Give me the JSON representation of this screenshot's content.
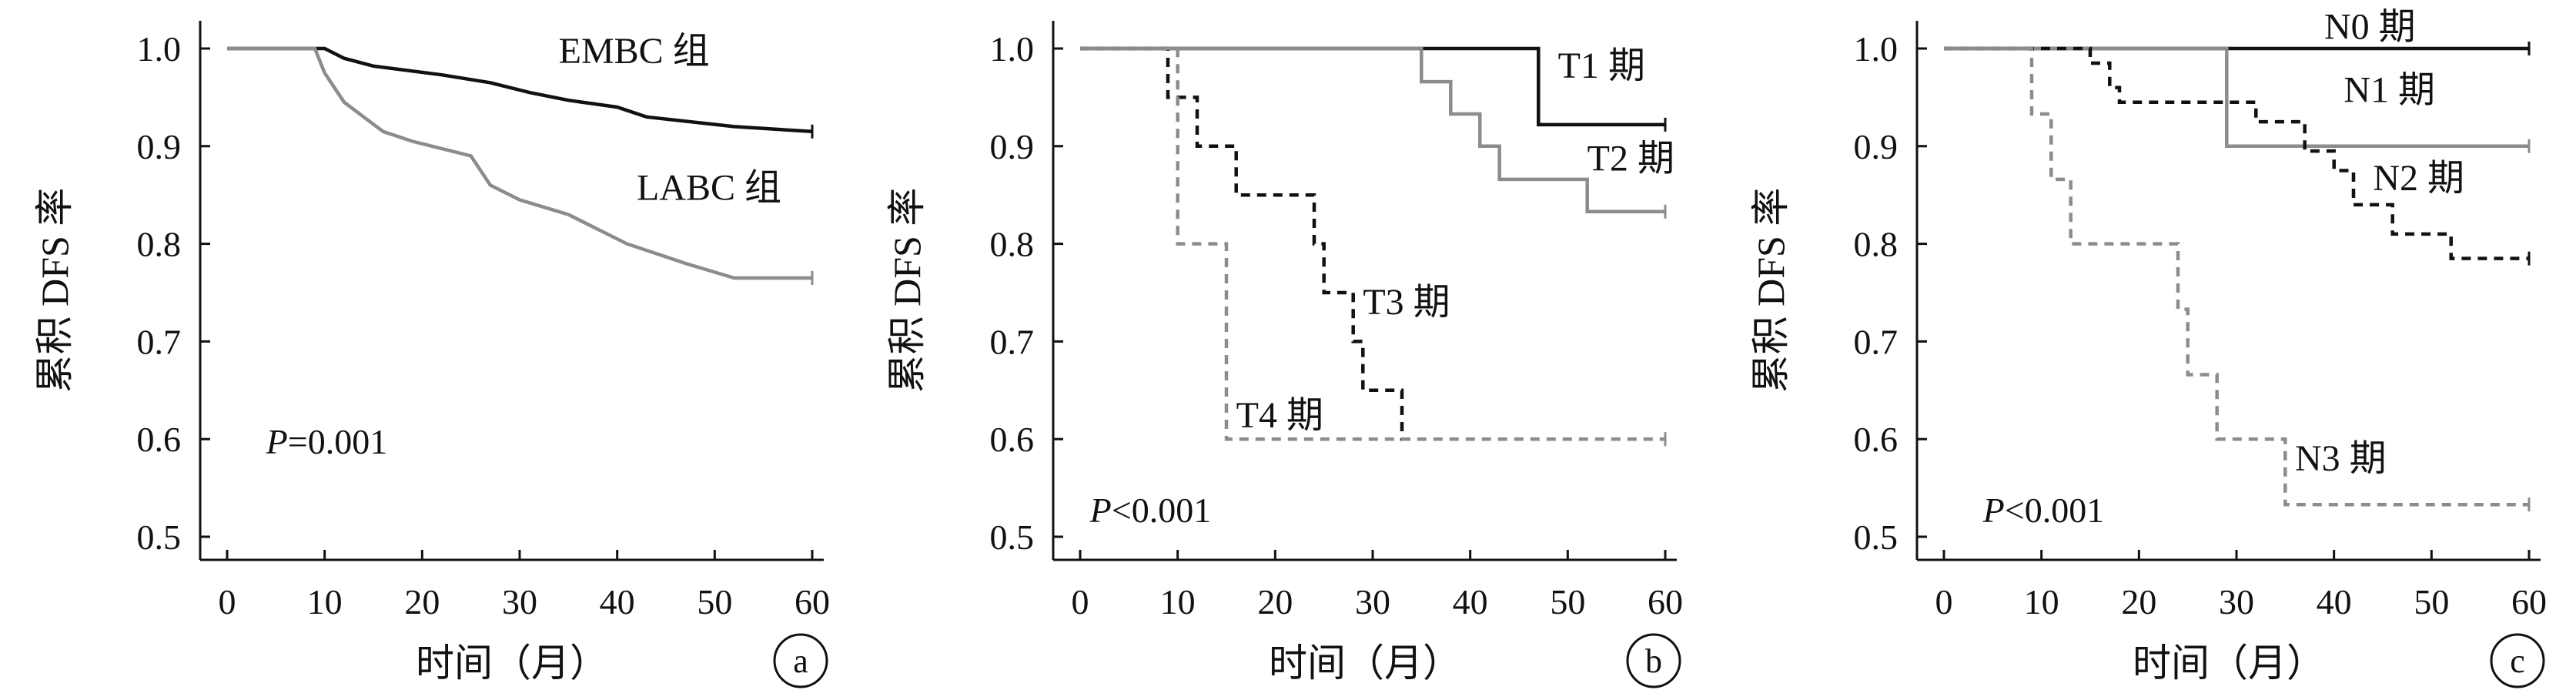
{
  "chart_data": [
    {
      "type": "line",
      "subtype": "kaplan-meier",
      "panel_label": "a",
      "ylabel": "累积 DFS 率",
      "xlabel": "时间（月）",
      "xlim": [
        0,
        60
      ],
      "ylim": [
        0.5,
        1.0
      ],
      "x_ticks": [
        0,
        10,
        20,
        30,
        40,
        50,
        60
      ],
      "y_ticks": [
        0.5,
        0.6,
        0.7,
        0.8,
        0.9,
        1.0
      ],
      "p_value_prefix": "P",
      "p_value_rest": "=0.001",
      "series": [
        {
          "name": "EMBC 组",
          "color": "#111111",
          "dash": "solid",
          "points": [
            [
              0,
              1.0
            ],
            [
              10,
              1.0
            ],
            [
              12,
              0.99
            ],
            [
              15,
              0.982
            ],
            [
              22,
              0.973
            ],
            [
              27,
              0.965
            ],
            [
              31,
              0.955
            ],
            [
              35,
              0.947
            ],
            [
              40,
              0.94
            ],
            [
              43,
              0.93
            ],
            [
              52,
              0.92
            ],
            [
              60,
              0.915
            ]
          ]
        },
        {
          "name": "LABC 组",
          "color": "#8c8c8c",
          "dash": "solid",
          "points": [
            [
              0,
              1.0
            ],
            [
              9,
              1.0
            ],
            [
              10,
              0.975
            ],
            [
              11,
              0.96
            ],
            [
              12,
              0.945
            ],
            [
              14,
              0.93
            ],
            [
              16,
              0.915
            ],
            [
              19,
              0.905
            ],
            [
              25,
              0.89
            ],
            [
              26,
              0.875
            ],
            [
              27,
              0.86
            ],
            [
              30,
              0.845
            ],
            [
              35,
              0.83
            ],
            [
              38,
              0.815
            ],
            [
              41,
              0.8
            ],
            [
              44,
              0.79
            ],
            [
              47,
              0.78
            ],
            [
              52,
              0.765
            ],
            [
              60,
              0.765
            ]
          ]
        }
      ]
    },
    {
      "type": "line",
      "subtype": "kaplan-meier",
      "panel_label": "b",
      "ylabel": "累积 DFS 率",
      "xlabel": "时间（月）",
      "xlim": [
        0,
        60
      ],
      "ylim": [
        0.5,
        1.0
      ],
      "x_ticks": [
        0,
        10,
        20,
        30,
        40,
        50,
        60
      ],
      "y_ticks": [
        0.5,
        0.6,
        0.7,
        0.8,
        0.9,
        1.0
      ],
      "p_value_prefix": "P",
      "p_value_rest": "<0.001",
      "series": [
        {
          "name": "T1 期",
          "color": "#111111",
          "dash": "solid",
          "points": [
            [
              0,
              1.0
            ],
            [
              47,
              1.0
            ],
            [
              47,
              0.922
            ],
            [
              60,
              0.922
            ]
          ]
        },
        {
          "name": "T2 期",
          "color": "#8c8c8c",
          "dash": "solid",
          "points": [
            [
              0,
              1.0
            ],
            [
              35,
              1.0
            ],
            [
              35,
              0.966
            ],
            [
              38,
              0.966
            ],
            [
              38,
              0.933
            ],
            [
              41,
              0.933
            ],
            [
              41,
              0.9
            ],
            [
              43,
              0.9
            ],
            [
              43,
              0.866
            ],
            [
              52,
              0.866
            ],
            [
              52,
              0.833
            ],
            [
              60,
              0.833
            ]
          ]
        },
        {
          "name": "T3 期",
          "color": "#111111",
          "dash": "dashed",
          "points": [
            [
              0,
              1.0
            ],
            [
              9,
              1.0
            ],
            [
              9,
              0.95
            ],
            [
              12,
              0.95
            ],
            [
              12,
              0.9
            ],
            [
              16,
              0.9
            ],
            [
              16,
              0.85
            ],
            [
              24,
              0.85
            ],
            [
              24,
              0.8
            ],
            [
              25,
              0.8
            ],
            [
              25,
              0.75
            ],
            [
              28,
              0.75
            ],
            [
              28,
              0.7
            ],
            [
              29,
              0.7
            ],
            [
              29,
              0.65
            ],
            [
              33,
              0.65
            ],
            [
              33,
              0.6
            ],
            [
              34,
              0.6
            ]
          ]
        },
        {
          "name": "T4 期",
          "color": "#8c8c8c",
          "dash": "dashed",
          "points": [
            [
              0,
              1.0
            ],
            [
              10,
              1.0
            ],
            [
              10,
              0.8
            ],
            [
              15,
              0.8
            ],
            [
              15,
              0.6
            ],
            [
              60,
              0.6
            ]
          ]
        }
      ]
    },
    {
      "type": "line",
      "subtype": "kaplan-meier",
      "panel_label": "c",
      "ylabel": "累积 DFS 率",
      "xlabel": "时间（月）",
      "xlim": [
        0,
        60
      ],
      "ylim": [
        0.5,
        1.0
      ],
      "x_ticks": [
        0,
        10,
        20,
        30,
        40,
        50,
        60
      ],
      "y_ticks": [
        0.5,
        0.6,
        0.7,
        0.8,
        0.9,
        1.0
      ],
      "p_value_prefix": "P",
      "p_value_rest": "<0.001",
      "series": [
        {
          "name": "N0 期",
          "color": "#111111",
          "dash": "solid",
          "points": [
            [
              0,
              1.0
            ],
            [
              60,
              1.0
            ]
          ]
        },
        {
          "name": "N1 期",
          "color": "#8c8c8c",
          "dash": "solid",
          "points": [
            [
              0,
              1.0
            ],
            [
              29,
              1.0
            ],
            [
              29,
              0.9
            ],
            [
              60,
              0.9
            ]
          ]
        },
        {
          "name": "N2 期",
          "color": "#111111",
          "dash": "dashed",
          "points": [
            [
              0,
              1.0
            ],
            [
              15,
              1.0
            ],
            [
              15,
              0.985
            ],
            [
              17,
              0.985
            ],
            [
              17,
              0.96
            ],
            [
              18,
              0.96
            ],
            [
              18,
              0.945
            ],
            [
              32,
              0.945
            ],
            [
              32,
              0.925
            ],
            [
              37,
              0.925
            ],
            [
              37,
              0.895
            ],
            [
              40,
              0.895
            ],
            [
              40,
              0.875
            ],
            [
              42,
              0.875
            ],
            [
              42,
              0.84
            ],
            [
              46,
              0.84
            ],
            [
              46,
              0.81
            ],
            [
              52,
              0.81
            ],
            [
              52,
              0.785
            ],
            [
              60,
              0.785
            ]
          ]
        },
        {
          "name": "N3 期",
          "color": "#8c8c8c",
          "dash": "dashed",
          "points": [
            [
              0,
              1.0
            ],
            [
              9,
              1.0
            ],
            [
              9,
              0.933
            ],
            [
              11,
              0.933
            ],
            [
              11,
              0.866
            ],
            [
              13,
              0.866
            ],
            [
              13,
              0.8
            ],
            [
              24,
              0.8
            ],
            [
              24,
              0.733
            ],
            [
              25,
              0.733
            ],
            [
              25,
              0.666
            ],
            [
              28,
              0.666
            ],
            [
              28,
              0.6
            ],
            [
              35,
              0.6
            ],
            [
              35,
              0.533
            ],
            [
              60,
              0.533
            ]
          ]
        }
      ]
    }
  ]
}
